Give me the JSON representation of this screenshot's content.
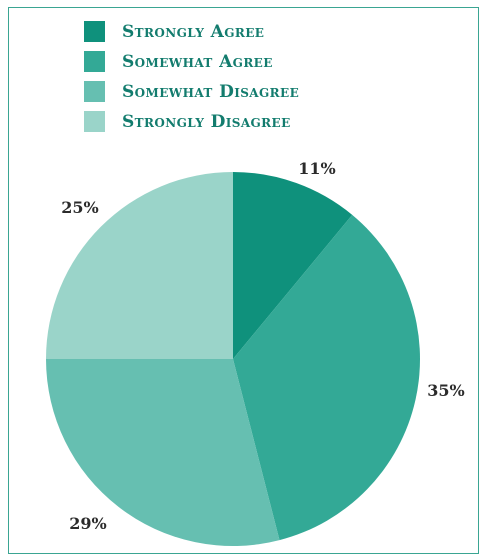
{
  "chart_data": {
    "type": "pie",
    "categories": [
      "Strongly Agree",
      "Somewhat Agree",
      "Somewhat Disagree",
      "Strongly Disagree"
    ],
    "values": [
      11,
      35,
      29,
      25
    ],
    "labels": [
      "11%",
      "35%",
      "29%",
      "25%"
    ],
    "colors": [
      "#0f917c",
      "#33a996",
      "#66bfb1",
      "#9ad4c9"
    ],
    "legend_position": "top",
    "title": ""
  }
}
